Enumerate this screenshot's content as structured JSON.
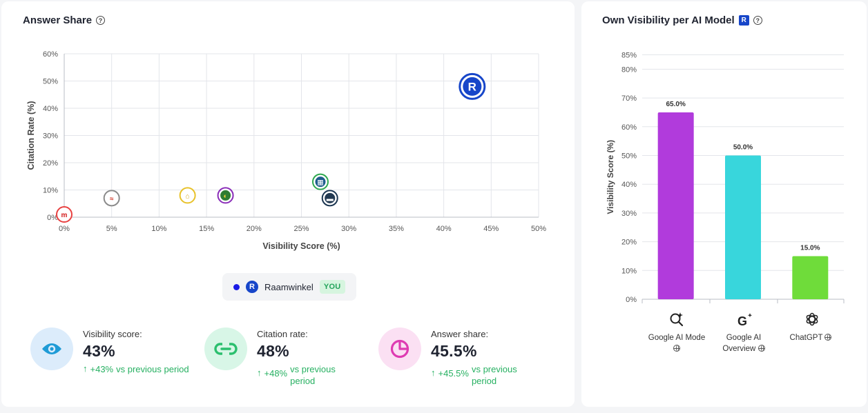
{
  "left_card": {
    "title": "Answer Share",
    "help_icon": "?",
    "legend": {
      "name": "Raamwinkel",
      "logo_letter": "R",
      "badge": "YOU"
    }
  },
  "right_card": {
    "title": "Own Visibility per AI Model",
    "badge_letter": "R",
    "help_icon": "?"
  },
  "metrics": [
    {
      "label": "Visibility score:",
      "value": "43%",
      "delta": "+43%",
      "note": "vs previous period",
      "icon": "eye-icon",
      "icon_bg": "#dcecfb",
      "icon_color": "#1f9bd6"
    },
    {
      "label": "Citation rate:",
      "value": "48%",
      "delta": "+48%",
      "note": "vs previous period",
      "icon": "link-icon",
      "icon_bg": "#d8f6e7",
      "icon_color": "#2bbf6e"
    },
    {
      "label": "Answer share:",
      "value": "45.5%",
      "delta": "+45.5%",
      "note": "vs previous period",
      "icon": "pie-chart-icon",
      "icon_bg": "#fbe0f3",
      "icon_color": "#de3bb2"
    }
  ],
  "models": [
    {
      "name_line1": "Google AI Mode",
      "name_line2": "",
      "icon": "search-sparkle-icon"
    },
    {
      "name_line1": "Google AI",
      "name_line2": "Overview",
      "icon": "google-sparkle-icon"
    },
    {
      "name_line1": "ChatGPT",
      "name_line2": "",
      "icon": "chatgpt-icon"
    }
  ],
  "chart_data": [
    {
      "type": "scatter",
      "xlabel": "Visibility Score (%)",
      "ylabel": "Citation Rate (%)",
      "xlim": [
        0,
        50
      ],
      "ylim": [
        0,
        60
      ],
      "xticks": [
        "0%",
        "5%",
        "10%",
        "15%",
        "20%",
        "25%",
        "30%",
        "35%",
        "40%",
        "45%",
        "50%"
      ],
      "yticks": [
        "0%",
        "10%",
        "20%",
        "30%",
        "40%",
        "50%",
        "60%"
      ],
      "grid": true,
      "points": [
        {
          "x": 43,
          "y": 48,
          "letter": "R",
          "ring": "#1746c9",
          "fill": "#1746c9",
          "text": "#ffffff",
          "highlight": true
        },
        {
          "x": 27,
          "y": 13,
          "letter": "▦",
          "ring": "#2fa84f",
          "fill": "#1f5c8c",
          "text": "#ffffff"
        },
        {
          "x": 28,
          "y": 7,
          "letter": "▬",
          "ring": "#1a3550",
          "fill": "#233a52",
          "text": "#ffffff"
        },
        {
          "x": 17,
          "y": 8,
          "letter": "◐",
          "ring": "#8a2db8",
          "fill": "#2f7d32",
          "text": "#f3d33a"
        },
        {
          "x": 13,
          "y": 8,
          "letter": "⌂",
          "ring": "#e8c22a",
          "fill": "#ffffff",
          "text": "#d4a514"
        },
        {
          "x": 5,
          "y": 7,
          "letter": "≈",
          "ring": "#8a8a8a",
          "fill": "#ffffff",
          "text": "#d23a2a"
        },
        {
          "x": 0,
          "y": 1,
          "letter": "m",
          "ring": "#e84040",
          "fill": "#ffffff",
          "text": "#d41f1f"
        }
      ]
    },
    {
      "type": "bar",
      "ylabel": "Visibility Score (%)",
      "ylim": [
        0,
        85
      ],
      "yticks": [
        "0%",
        "10%",
        "20%",
        "30%",
        "40%",
        "50%",
        "60%",
        "70%",
        "80%",
        "85%"
      ],
      "categories": [
        "Google AI Mode",
        "Google AI Overview",
        "ChatGPT"
      ],
      "values": [
        65.0,
        50.0,
        15.0
      ],
      "value_labels": [
        "65.0%",
        "50.0%",
        "15.0%"
      ],
      "colors": [
        "#b13bdc",
        "#38d6dc",
        "#6fdc3a"
      ]
    }
  ]
}
